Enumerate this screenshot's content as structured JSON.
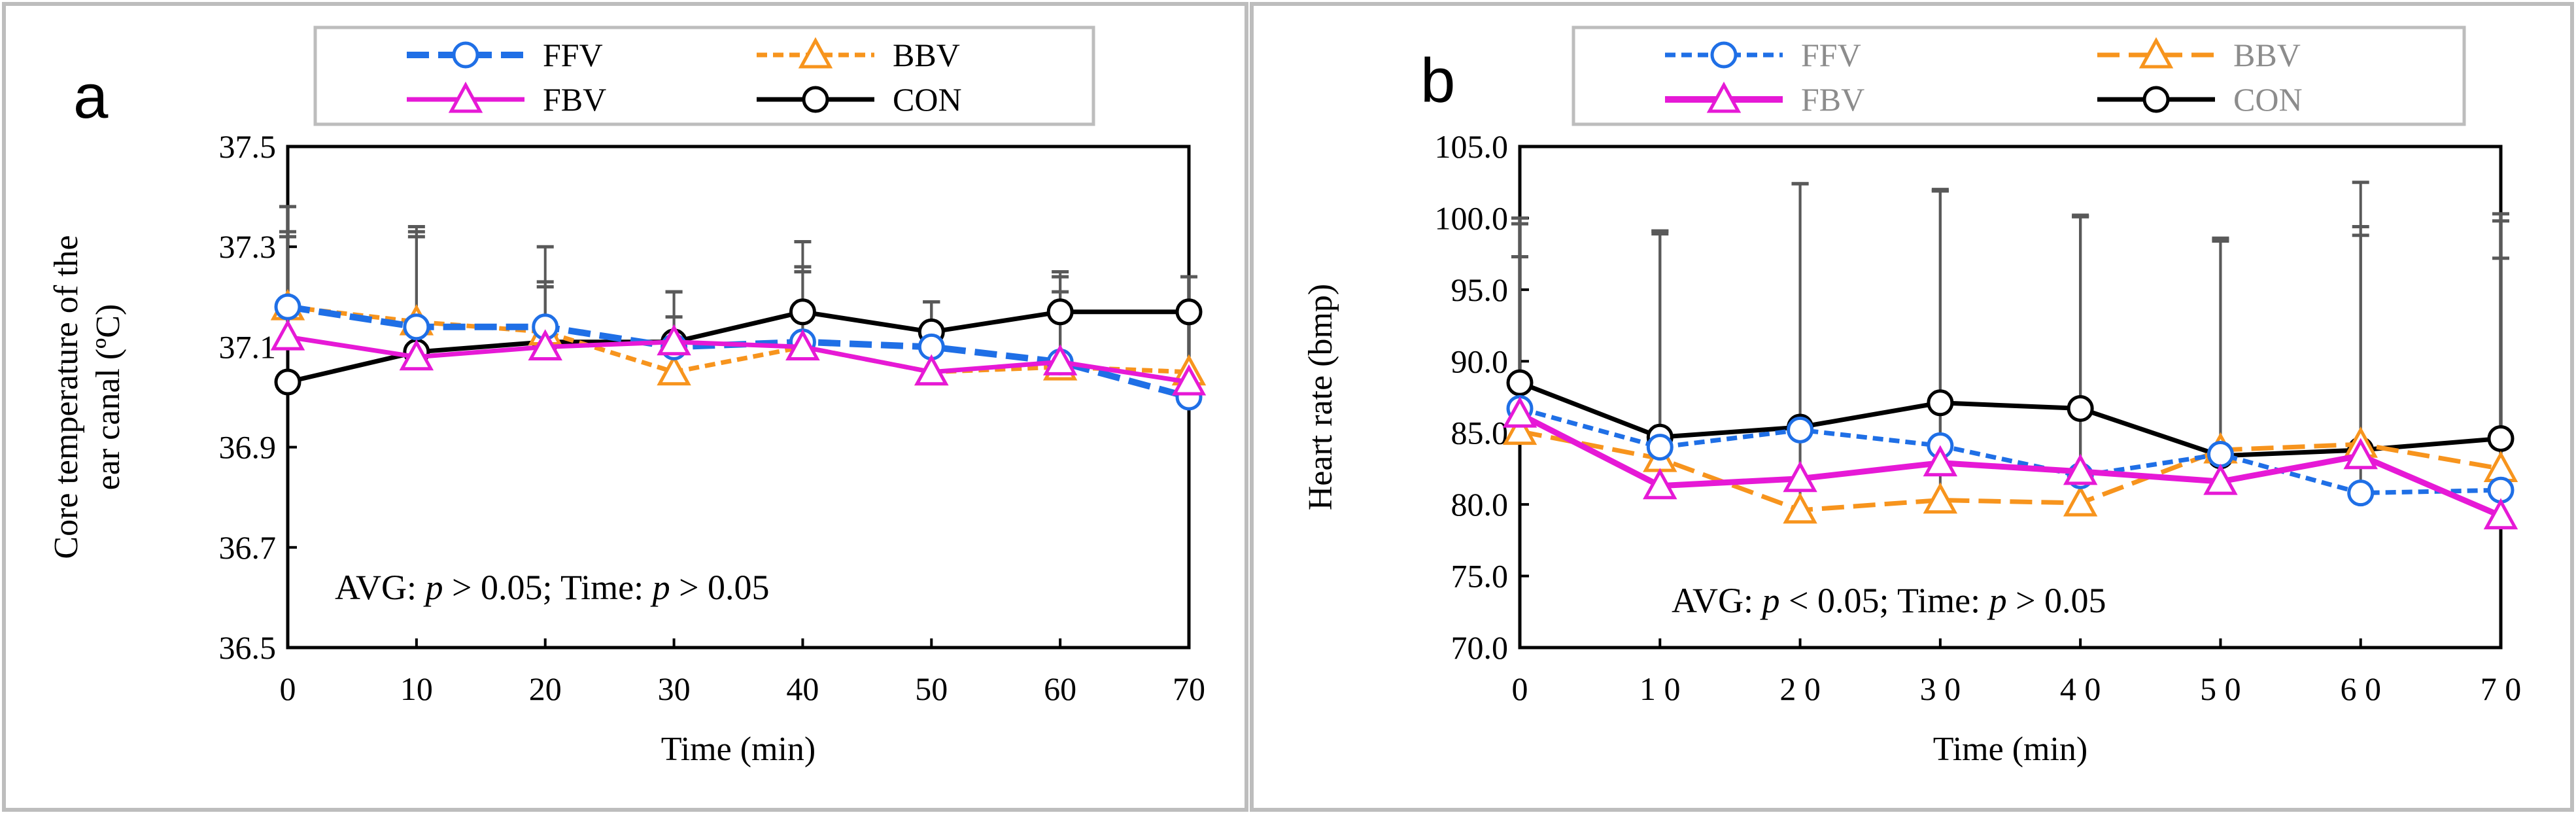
{
  "colors": {
    "FFV": "#1f6fe6",
    "BBV": "#f7941d",
    "FBV": "#e619d6",
    "CON": "#000000",
    "error_bar": "#595959",
    "frame": "#bdbdbd"
  },
  "chart_data": [
    {
      "panel": "a",
      "type": "line",
      "title": "",
      "xlabel": "Time (min)",
      "ylabel_line1": "Core temperature of the",
      "ylabel_line2": "ear canal (ºC)",
      "x": [
        0,
        10,
        20,
        30,
        40,
        50,
        60,
        70
      ],
      "xtick_labels": [
        "0",
        "10",
        "20",
        "30",
        "40",
        "50",
        "60",
        "70"
      ],
      "ylim": [
        36.5,
        37.5
      ],
      "yticks": [
        36.5,
        36.7,
        36.9,
        37.1,
        37.3,
        37.5
      ],
      "ytick_labels": [
        "36.5",
        "36.7",
        "36.9",
        "37.1",
        "37.3",
        "37.5"
      ],
      "grid": false,
      "legend_position": "top",
      "annotation": {
        "pre1": "AVG: ",
        "p1": "p",
        "rel1": " > 0.05; Time: ",
        "p2": "p",
        "rel2": " > 0.05"
      },
      "series": [
        {
          "name": "FFV",
          "values": [
            37.18,
            37.14,
            37.14,
            37.1,
            37.11,
            37.1,
            37.07,
            37.0
          ],
          "errors": [
            0.2,
            0.2,
            0.16,
            0.11,
            0.14,
            0.09,
            0.17,
            0.0
          ]
        },
        {
          "name": "BBV",
          "values": [
            37.18,
            37.15,
            37.13,
            37.05,
            37.1,
            37.05,
            37.06,
            37.05
          ],
          "errors": [
            0.14,
            0.17,
            0.09,
            0.11,
            0.16,
            0.14,
            0.15,
            0.19
          ]
        },
        {
          "name": "FBV",
          "values": [
            37.12,
            37.08,
            37.1,
            37.11,
            37.1,
            37.05,
            37.07,
            37.03
          ],
          "errors": [
            0.21,
            0.25,
            0.13,
            0.1,
            0.21,
            0.14,
            0.18,
            0.0
          ]
        },
        {
          "name": "CON",
          "values": [
            37.03,
            37.09,
            37.11,
            37.11,
            37.17,
            37.13,
            37.17,
            37.17
          ],
          "errors": [
            0.0,
            0.0,
            0.0,
            0.0,
            0.0,
            0.0,
            0.0,
            0.0
          ]
        }
      ]
    },
    {
      "panel": "b",
      "type": "line",
      "title": "",
      "xlabel": "Time (min)",
      "ylabel": "Heart rate (bmp)",
      "x": [
        0,
        10,
        20,
        30,
        40,
        50,
        60,
        70
      ],
      "xtick_labels": [
        "0",
        "1 0",
        "2 0",
        "3 0",
        "4 0",
        "5 0",
        "6 0",
        "7 0"
      ],
      "ylim": [
        70,
        105
      ],
      "yticks": [
        70,
        75,
        80,
        85,
        90,
        95,
        100,
        105
      ],
      "ytick_labels": [
        "70.0",
        "75.0",
        "80.0",
        "85.0",
        "90.0",
        "95.0",
        "100.0",
        "105.0"
      ],
      "grid": false,
      "legend_position": "top",
      "annotation": {
        "pre1": "AVG: ",
        "p1": "p",
        "rel1": " < 0.05; Time: ",
        "p2": "p",
        "rel2": " > 0.05"
      },
      "series": [
        {
          "name": "FFV",
          "values": [
            86.7,
            84.0,
            85.2,
            84.1,
            82.0,
            83.5,
            80.8,
            81.0
          ],
          "errors": [
            12.9,
            14.9,
            17.2,
            17.9,
            18.1,
            15.0,
            18.6,
            19.3
          ]
        },
        {
          "name": "BBV",
          "values": [
            85.1,
            83.2,
            79.6,
            80.3,
            80.1,
            83.8,
            84.2,
            82.5
          ],
          "errors": [
            14.9,
            15.9,
            22.8,
            21.6,
            20.0,
            14.8,
            18.3,
            14.7
          ]
        },
        {
          "name": "FBV",
          "values": [
            86.3,
            81.3,
            81.8,
            82.9,
            82.3,
            81.6,
            83.4,
            79.2
          ],
          "errors": [
            11.0,
            17.8,
            20.6,
            19.0,
            17.9,
            16.8,
            15.4,
            20.6
          ]
        },
        {
          "name": "CON",
          "values": [
            88.5,
            84.7,
            85.4,
            87.1,
            86.7,
            83.4,
            83.8,
            84.6
          ],
          "errors": [
            0.0,
            0.0,
            0.0,
            0.0,
            0.0,
            0.0,
            0.0,
            0.0
          ]
        }
      ]
    }
  ]
}
